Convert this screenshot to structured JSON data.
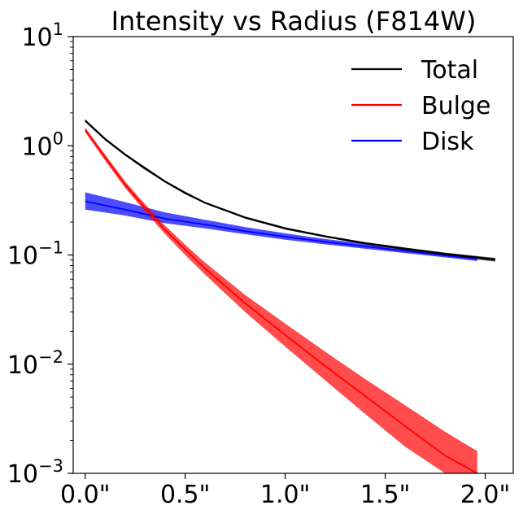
{
  "chart_data": {
    "type": "line",
    "title": "Intensity vs Radius (F814W)",
    "xlabel": "",
    "ylabel": "",
    "x_scale": "linear",
    "y_scale": "log",
    "xlim": [
      -0.06,
      2.14
    ],
    "ylim": [
      0.001,
      10
    ],
    "x_ticks": [
      0.0,
      0.5,
      1.0,
      1.5,
      2.0
    ],
    "x_tick_labels": [
      "0.0\"",
      "0.5\"",
      "1.0\"",
      "1.5\"",
      "2.0\""
    ],
    "y_ticks": [
      0.001,
      0.01,
      0.1,
      1,
      10
    ],
    "y_tick_labels": [
      {
        "base": "10",
        "exp": "−3"
      },
      {
        "base": "10",
        "exp": "−2"
      },
      {
        "base": "10",
        "exp": "−1"
      },
      {
        "base": "10",
        "exp": "0"
      },
      {
        "base": "10",
        "exp": "1"
      }
    ],
    "grid": false,
    "legend_position": "top-right",
    "series": [
      {
        "name": "Total",
        "color": "#000000",
        "x": [
          0.0,
          0.1,
          0.2,
          0.3,
          0.4,
          0.5,
          0.6,
          0.8,
          1.0,
          1.2,
          1.4,
          1.6,
          1.8,
          2.0,
          2.05
        ],
        "y": [
          1.7,
          1.15,
          0.83,
          0.62,
          0.47,
          0.37,
          0.3,
          0.22,
          0.175,
          0.148,
          0.128,
          0.114,
          0.102,
          0.093,
          0.091
        ],
        "y_low": [
          1.65,
          1.12,
          0.81,
          0.6,
          0.46,
          0.36,
          0.295,
          0.215,
          0.171,
          0.145,
          0.125,
          0.111,
          0.099,
          0.089,
          0.087
        ],
        "y_high": [
          1.75,
          1.18,
          0.85,
          0.64,
          0.48,
          0.38,
          0.305,
          0.225,
          0.179,
          0.151,
          0.131,
          0.117,
          0.105,
          0.096,
          0.094
        ]
      },
      {
        "name": "Bulge",
        "color": "#ff0000",
        "x": [
          0.0,
          0.1,
          0.2,
          0.3,
          0.4,
          0.5,
          0.6,
          0.8,
          1.0,
          1.2,
          1.4,
          1.6,
          1.8,
          1.96
        ],
        "y": [
          1.4,
          0.78,
          0.44,
          0.27,
          0.17,
          0.112,
          0.075,
          0.036,
          0.0185,
          0.0096,
          0.0051,
          0.0027,
          0.00145,
          0.00098
        ],
        "y_low": [
          1.33,
          0.73,
          0.41,
          0.25,
          0.155,
          0.1,
          0.066,
          0.03,
          0.0145,
          0.0071,
          0.0035,
          0.00175,
          0.00088,
          0.00055
        ],
        "y_high": [
          1.47,
          0.83,
          0.47,
          0.29,
          0.185,
          0.124,
          0.085,
          0.043,
          0.0235,
          0.013,
          0.0073,
          0.0042,
          0.0024,
          0.0016
        ]
      },
      {
        "name": "Disk",
        "color": "#0000ff",
        "x": [
          0.0,
          0.2,
          0.4,
          0.6,
          0.8,
          1.0,
          1.2,
          1.4,
          1.6,
          1.8,
          1.96
        ],
        "y": [
          0.31,
          0.26,
          0.215,
          0.19,
          0.165,
          0.147,
          0.132,
          0.12,
          0.109,
          0.099,
          0.092
        ],
        "y_low": [
          0.26,
          0.23,
          0.195,
          0.175,
          0.155,
          0.138,
          0.125,
          0.114,
          0.104,
          0.095,
          0.088
        ],
        "y_high": [
          0.375,
          0.305,
          0.245,
          0.21,
          0.18,
          0.158,
          0.14,
          0.127,
          0.115,
          0.104,
          0.096
        ]
      }
    ]
  }
}
